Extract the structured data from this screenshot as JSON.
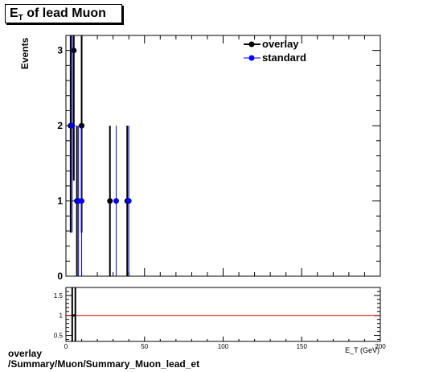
{
  "title": {
    "main": "E",
    "sub": "T",
    "rest": " of lead Muon"
  },
  "ylabel": "Events",
  "xlabel": "E_T (GeV)",
  "caption": {
    "line1": "overlay",
    "line2": "/Summary/Muon/Summary_Muon_lead_et"
  },
  "colors": {
    "overlay": "#000000",
    "standard": "#0000ff",
    "ratio_line": "#cc0000"
  },
  "chart_data": [
    {
      "type": "scatter",
      "xlim": [
        0,
        200
      ],
      "ylim": [
        0,
        3.2
      ],
      "y_ticks": [
        0,
        1,
        2,
        3
      ],
      "legend_position": "top-right",
      "series": [
        {
          "name": "overlay",
          "points": [
            {
              "x": 3,
              "y": 2,
              "err": 1.42
            },
            {
              "x": 5,
              "y": 3,
              "err": 1.73
            },
            {
              "x": 7,
              "y": 1,
              "err": 1.0
            },
            {
              "x": 10,
              "y": 2,
              "err": 1.42
            },
            {
              "x": 28,
              "y": 1,
              "err": 1.0
            },
            {
              "x": 39,
              "y": 1,
              "err": 1.0
            }
          ]
        },
        {
          "name": "standard",
          "points": [
            {
              "x": 4,
              "y": 2,
              "err": 1.42
            },
            {
              "x": 8,
              "y": 1,
              "err": 1.0
            },
            {
              "x": 10,
              "y": 1,
              "err": 1.0
            },
            {
              "x": 32,
              "y": 1,
              "err": 1.0
            },
            {
              "x": 40,
              "y": 1,
              "err": 1.0
            }
          ]
        }
      ]
    },
    {
      "type": "line",
      "xlim": [
        0,
        200
      ],
      "ylim": [
        0.35,
        1.7
      ],
      "y_ticks": [
        0.5,
        1,
        1.5
      ],
      "x_ticks": [
        0,
        50,
        100,
        150,
        200
      ],
      "reference_y": 1,
      "error_bars_x": [
        4,
        6
      ]
    }
  ]
}
